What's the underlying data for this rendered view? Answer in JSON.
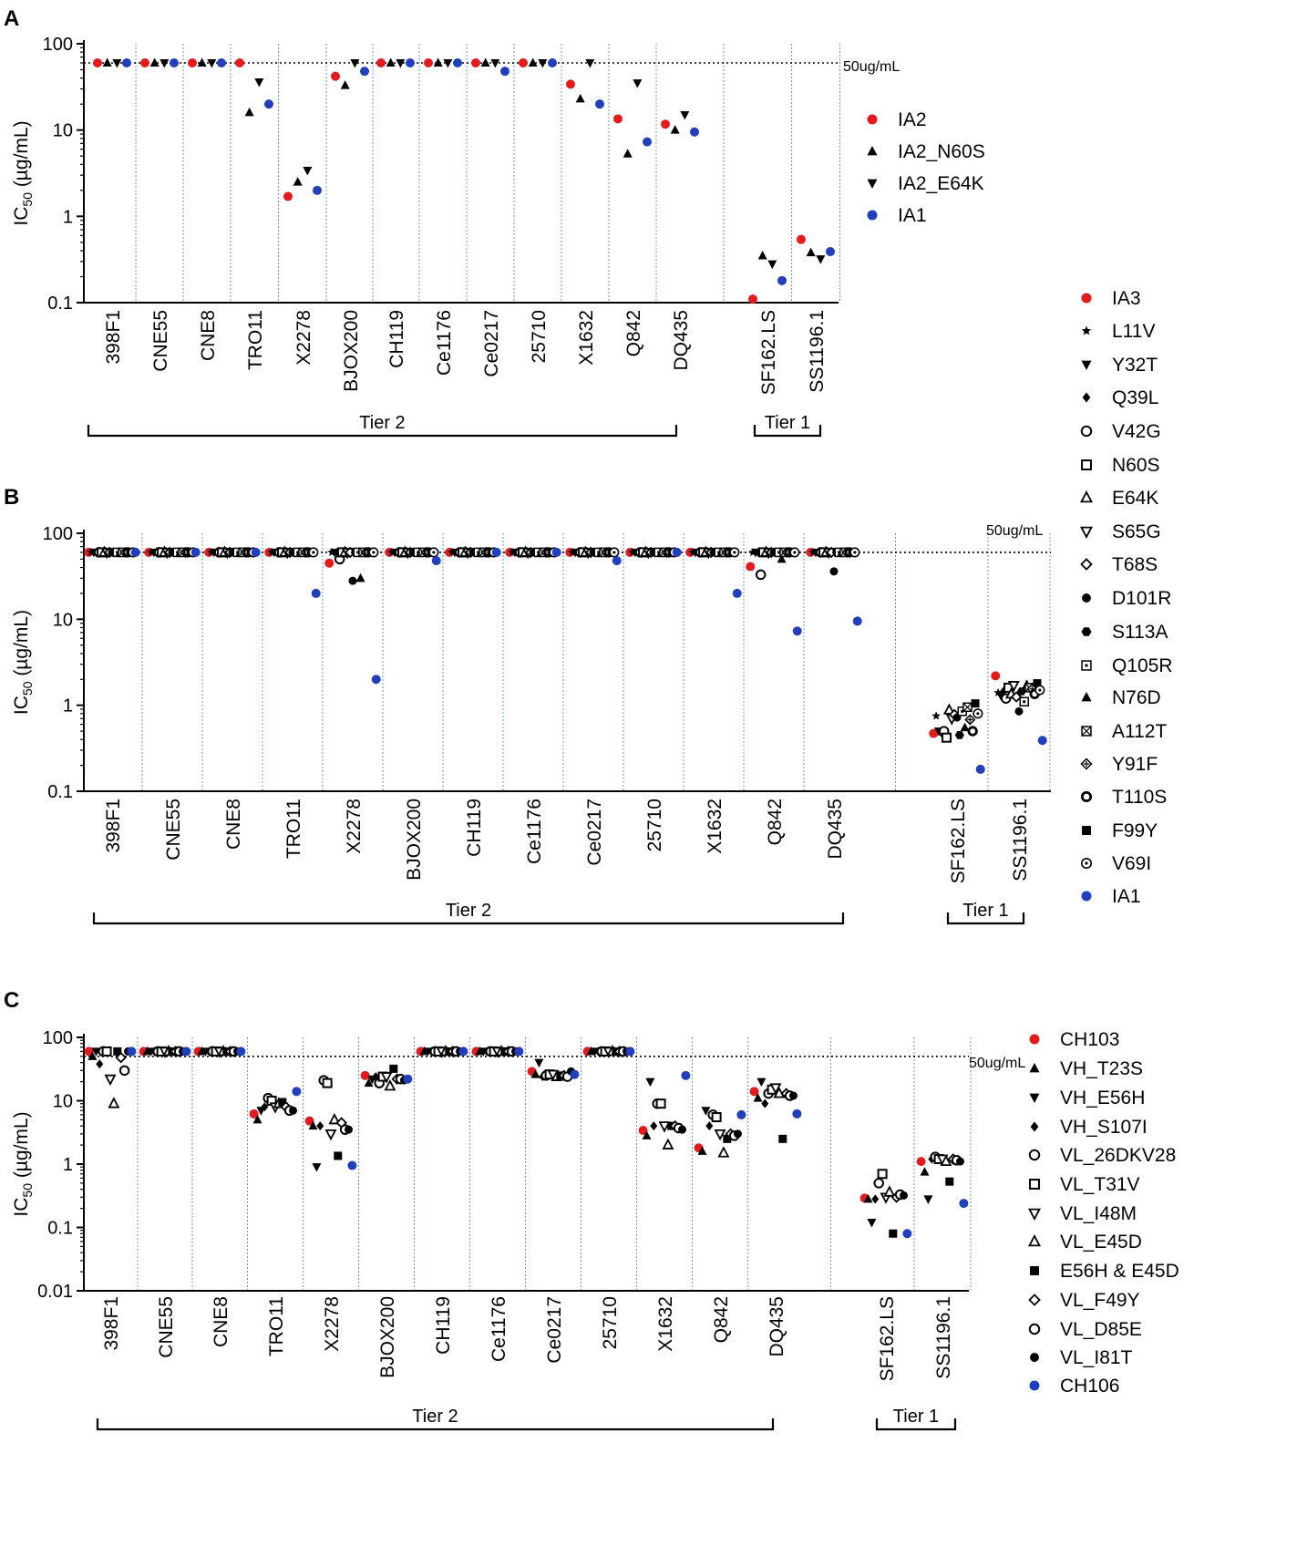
{
  "chart_data": [
    {
      "panel": "A",
      "type": "scatter",
      "ylabel_main": "IC",
      "ylabel_sub": "50",
      "ylabel_unit": " (µg/mL)",
      "yscale": "log",
      "ylim": [
        0.1,
        100
      ],
      "yticks": [
        "0.1",
        "1",
        "10",
        "100"
      ],
      "reference_line": {
        "value": 60,
        "label": "50ug/mL"
      },
      "categories": [
        "398F1",
        "CNE55",
        "CNE8",
        "TRO11",
        "X2278",
        "BJOX200",
        "CH119",
        "Ce1176",
        "Ce0217",
        "25710",
        "X1632",
        "Q842",
        "DQ435",
        "SF162.LS",
        "SS1196.1"
      ],
      "groups": [
        {
          "label": "Tier 2",
          "from": "398F1",
          "to": "DQ435"
        },
        {
          "label": "Tier 1",
          "from": "SF162.LS",
          "to": "SS1196.1"
        }
      ],
      "legend_position": "right",
      "series": [
        {
          "name": "IA2",
          "marker": "circle",
          "color": "#e41a1c",
          "values": [
            60,
            60,
            60,
            60,
            1.7,
            42,
            60,
            60,
            60,
            60,
            34,
            13.5,
            11.7,
            0.11,
            0.54
          ]
        },
        {
          "name": "IA2_N60S",
          "marker": "triangle-up",
          "color": "#000000",
          "values": [
            60,
            60,
            60,
            16,
            2.5,
            33,
            60,
            60,
            60,
            60,
            23,
            5.3,
            10,
            0.35,
            0.38
          ]
        },
        {
          "name": "IA2_E64K",
          "marker": "triangle-down",
          "color": "#000000",
          "values": [
            60,
            60,
            60,
            36,
            3.4,
            60,
            60,
            60,
            60,
            60,
            60,
            35,
            15,
            0.28,
            0.32
          ]
        },
        {
          "name": "IA1",
          "marker": "circle",
          "color": "#1f3fbf",
          "values": [
            60,
            60,
            60,
            20,
            2.0,
            48,
            60,
            60,
            48,
            60,
            20,
            7.3,
            9.5,
            0.18,
            0.39
          ]
        }
      ]
    },
    {
      "panel": "B",
      "type": "scatter",
      "ylabel_main": "IC",
      "ylabel_sub": "50",
      "ylabel_unit": " (µg/mL)",
      "yscale": "log",
      "ylim": [
        0.1,
        100
      ],
      "yticks": [
        "0.1",
        "1",
        "10",
        "100"
      ],
      "reference_line": {
        "value": 60,
        "label": "50ug/mL"
      },
      "categories": [
        "398F1",
        "CNE55",
        "CNE8",
        "TRO11",
        "X2278",
        "BJOX200",
        "CH119",
        "Ce1176",
        "Ce0217",
        "25710",
        "X1632",
        "Q842",
        "DQ435",
        "SF162.LS",
        "SS1196.1"
      ],
      "groups": [
        {
          "label": "Tier 2",
          "from": "398F1",
          "to": "DQ435"
        },
        {
          "label": "Tier 1",
          "from": "SF162.LS",
          "to": "SS1196.1"
        }
      ],
      "legend_position": "right",
      "series": [
        {
          "name": "IA3",
          "marker": "circle",
          "color": "#e41a1c",
          "values": [
            60,
            60,
            60,
            60,
            45,
            60,
            60,
            60,
            60,
            60,
            60,
            41,
            60,
            0.47,
            2.2
          ]
        },
        {
          "name": "L11V",
          "marker": "star",
          "color": "#000000",
          "values": [
            60,
            60,
            60,
            60,
            60,
            60,
            60,
            60,
            60,
            60,
            60,
            60,
            60,
            0.75,
            1.4
          ]
        },
        {
          "name": "Y32T",
          "marker": "triangle-down",
          "color": "#000000",
          "values": [
            60,
            60,
            60,
            60,
            60,
            60,
            60,
            60,
            60,
            60,
            60,
            60,
            60,
            0.5,
            1.3
          ]
        },
        {
          "name": "Q39L",
          "marker": "diamond-filled",
          "color": "#000000",
          "values": [
            60,
            60,
            60,
            60,
            60,
            60,
            60,
            60,
            60,
            60,
            60,
            60,
            60,
            0.48,
            1.45
          ]
        },
        {
          "name": "V42G",
          "marker": "circle-open",
          "color": "#000000",
          "values": [
            60,
            60,
            60,
            60,
            50,
            60,
            60,
            60,
            60,
            60,
            60,
            33,
            60,
            0.5,
            1.2
          ]
        },
        {
          "name": "N60S",
          "marker": "square-open",
          "color": "#000000",
          "values": [
            60,
            60,
            60,
            60,
            60,
            60,
            60,
            60,
            60,
            60,
            60,
            60,
            60,
            0.42,
            1.6
          ]
        },
        {
          "name": "E64K",
          "marker": "triangle-up-open",
          "color": "#000000",
          "values": [
            60,
            60,
            60,
            60,
            60,
            60,
            60,
            60,
            60,
            60,
            60,
            60,
            60,
            0.88,
            1.35
          ]
        },
        {
          "name": "S65G",
          "marker": "triangle-down-open",
          "color": "#000000",
          "values": [
            60,
            60,
            60,
            60,
            60,
            60,
            60,
            60,
            60,
            60,
            60,
            60,
            60,
            0.7,
            1.7
          ]
        },
        {
          "name": "T68S",
          "marker": "diamond-open",
          "color": "#000000",
          "values": [
            60,
            60,
            60,
            60,
            60,
            60,
            60,
            60,
            60,
            60,
            60,
            60,
            60,
            0.78,
            1.25
          ]
        },
        {
          "name": "D101R",
          "marker": "circle-filled-black",
          "color": "#000000",
          "values": [
            60,
            60,
            60,
            60,
            28,
            60,
            60,
            60,
            60,
            60,
            60,
            60,
            36,
            0.72,
            0.85
          ]
        },
        {
          "name": "S113A",
          "marker": "hexagon",
          "color": "#000000",
          "values": [
            60,
            60,
            60,
            60,
            60,
            60,
            60,
            60,
            60,
            60,
            60,
            60,
            60,
            0.45,
            1.45
          ]
        },
        {
          "name": "Q105R",
          "marker": "square-dot",
          "color": "#000000",
          "values": [
            60,
            60,
            60,
            60,
            60,
            60,
            60,
            60,
            60,
            60,
            60,
            60,
            60,
            0.85,
            1.1
          ]
        },
        {
          "name": "N76D",
          "marker": "triangle-up",
          "color": "#000000",
          "values": [
            60,
            60,
            60,
            60,
            30,
            60,
            60,
            60,
            60,
            60,
            60,
            50,
            60,
            0.55,
            1.75
          ]
        },
        {
          "name": "A112T",
          "marker": "square-x",
          "color": "#000000",
          "values": [
            60,
            60,
            60,
            60,
            60,
            60,
            60,
            60,
            60,
            60,
            60,
            60,
            60,
            0.95,
            1.6
          ]
        },
        {
          "name": "Y91F",
          "marker": "diamond-cross",
          "color": "#000000",
          "values": [
            60,
            60,
            60,
            60,
            60,
            60,
            60,
            60,
            60,
            60,
            60,
            60,
            60,
            0.68,
            1.55
          ]
        },
        {
          "name": "T110S",
          "marker": "circle-thick",
          "color": "#000000",
          "values": [
            60,
            60,
            60,
            60,
            60,
            60,
            60,
            60,
            60,
            60,
            60,
            60,
            60,
            0.5,
            1.35
          ]
        },
        {
          "name": "F99Y",
          "marker": "square-filled",
          "color": "#000000",
          "values": [
            60,
            60,
            60,
            60,
            60,
            60,
            60,
            60,
            60,
            60,
            60,
            60,
            60,
            1.05,
            1.8
          ]
        },
        {
          "name": "V69I",
          "marker": "circle-dot",
          "color": "#000000",
          "values": [
            60,
            60,
            60,
            60,
            60,
            60,
            60,
            60,
            60,
            60,
            60,
            60,
            60,
            0.8,
            1.5
          ]
        },
        {
          "name": "IA1",
          "marker": "circle",
          "color": "#1f3fbf",
          "values": [
            60,
            60,
            60,
            20,
            2.0,
            48,
            60,
            60,
            48,
            60,
            20,
            7.3,
            9.5,
            0.18,
            0.39
          ]
        }
      ]
    },
    {
      "panel": "C",
      "type": "scatter",
      "ylabel_main": "IC",
      "ylabel_sub": "50",
      "ylabel_unit": " (µg/mL)",
      "yscale": "log",
      "ylim": [
        0.01,
        100
      ],
      "yticks": [
        "0.01",
        "0.1",
        "1",
        "10",
        "100"
      ],
      "reference_line": {
        "value": 50,
        "label": "50ug/mL"
      },
      "categories": [
        "398F1",
        "CNE55",
        "CNE8",
        "TRO11",
        "X2278",
        "BJOX200",
        "CH119",
        "Ce1176",
        "Ce0217",
        "25710",
        "X1632",
        "Q842",
        "DQ435",
        "SF162.LS",
        "SS1196.1"
      ],
      "groups": [
        {
          "label": "Tier 2",
          "from": "398F1",
          "to": "DQ435"
        },
        {
          "label": "Tier 1",
          "from": "SF162.LS",
          "to": "SS1196.1"
        }
      ],
      "legend_position": "right",
      "series": [
        {
          "name": "CH103",
          "marker": "circle",
          "color": "#e41a1c",
          "values": [
            60,
            60,
            60,
            6.2,
            4.8,
            25,
            60,
            60,
            29,
            60,
            3.4,
            1.8,
            14,
            0.29,
            1.1
          ]
        },
        {
          "name": "VH_T23S",
          "marker": "triangle-up",
          "color": "#000000",
          "values": [
            50,
            60,
            60,
            5,
            4,
            19,
            60,
            60,
            26,
            60,
            2.8,
            1.6,
            11,
            0.28,
            0.75
          ]
        },
        {
          "name": "VH_E56H",
          "marker": "triangle-down",
          "color": "#000000",
          "values": [
            60,
            60,
            60,
            7,
            0.9,
            22,
            60,
            60,
            40,
            60,
            20,
            7,
            20,
            0.12,
            0.28
          ]
        },
        {
          "name": "VH_S107I",
          "marker": "diamond-filled",
          "color": "#000000",
          "values": [
            38,
            60,
            60,
            8,
            4,
            24,
            60,
            60,
            24,
            60,
            4,
            4,
            9,
            0.28,
            1.2
          ]
        },
        {
          "name": "VL_26DKV28",
          "marker": "circle-open",
          "color": "#000000",
          "values": [
            60,
            60,
            60,
            11,
            21,
            19,
            60,
            60,
            25,
            60,
            9,
            6,
            13,
            0.5,
            1.3
          ]
        },
        {
          "name": "VL_T31V",
          "marker": "square-open",
          "color": "#000000",
          "values": [
            60,
            60,
            60,
            10,
            19,
            24,
            60,
            60,
            26,
            60,
            9,
            5.5,
            15,
            0.7,
            1.2
          ]
        },
        {
          "name": "VL_I48M",
          "marker": "triangle-down-open",
          "color": "#000000",
          "values": [
            22,
            60,
            60,
            8,
            3,
            24,
            60,
            60,
            26,
            60,
            4,
            3,
            16,
            0.3,
            1.2
          ]
        },
        {
          "name": "VL_E45D",
          "marker": "triangle-up-open",
          "color": "#000000",
          "values": [
            9,
            60,
            60,
            9,
            5,
            17,
            60,
            60,
            24,
            60,
            2,
            1.5,
            13,
            0.36,
            1.1
          ]
        },
        {
          "name": "E56H & E45D",
          "marker": "square-filled",
          "color": "#000000",
          "values": [
            60,
            60,
            60,
            9.5,
            1.35,
            32,
            60,
            60,
            25,
            60,
            4,
            2.5,
            2.5,
            0.08,
            0.53
          ]
        },
        {
          "name": "VL_F49Y",
          "marker": "diamond-open",
          "color": "#000000",
          "values": [
            48,
            60,
            60,
            8,
            4.5,
            22,
            60,
            60,
            25,
            60,
            4,
            3,
            13,
            0.3,
            1.2
          ]
        },
        {
          "name": "VL_D85E",
          "marker": "circle-open",
          "color": "#000000",
          "values": [
            30,
            60,
            60,
            7,
            3.5,
            22,
            60,
            60,
            24,
            60,
            3.7,
            2.8,
            12,
            0.33,
            1.15
          ]
        },
        {
          "name": "VL_I81T",
          "marker": "circle-filled-black",
          "color": "#000000",
          "values": [
            60,
            60,
            60,
            7,
            3.5,
            21,
            60,
            60,
            29,
            60,
            3.5,
            3,
            12,
            0.32,
            1.1
          ]
        },
        {
          "name": "CH106",
          "marker": "circle",
          "color": "#1f3fbf",
          "values": [
            60,
            60,
            60,
            14,
            0.95,
            22,
            60,
            60,
            26,
            60,
            25,
            6,
            6.2,
            0.08,
            0.24
          ]
        }
      ]
    }
  ],
  "panels": [
    {
      "letter": "A"
    },
    {
      "letter": "B"
    },
    {
      "letter": "C"
    }
  ]
}
